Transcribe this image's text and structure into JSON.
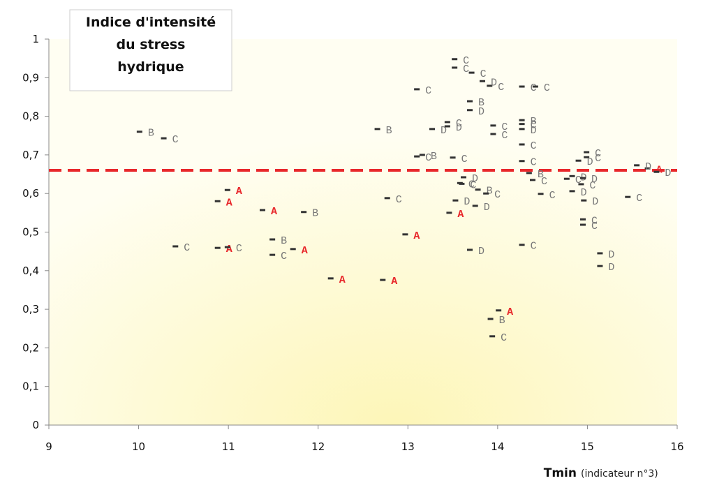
{
  "chart_data": {
    "type": "scatter",
    "title": [
      "Indice d'intensité",
      "du stress",
      "hydrique"
    ],
    "xlabel": "Tmin",
    "xlabel_note": "(indicateur n°3)",
    "xlim": [
      9,
      16
    ],
    "xticks": [
      9,
      10,
      11,
      12,
      13,
      14,
      15,
      16
    ],
    "ylim": [
      0,
      1
    ],
    "yticks": [
      0,
      {
        "value": 0.1,
        "label": "0,1"
      },
      {
        "value": 0.2,
        "label": "0,2"
      },
      {
        "value": 0.3,
        "label": "0,3"
      },
      {
        "value": 0.4,
        "label": "0,4"
      },
      {
        "value": 0.5,
        "label": "0,5"
      },
      {
        "value": 0.6,
        "label": "0,6"
      },
      {
        "value": 0.7,
        "label": "0,7"
      },
      {
        "value": 0.8,
        "label": "0,8"
      },
      {
        "value": 0.9,
        "label": "0,9"
      },
      1
    ],
    "reference_line": {
      "value": 0.66,
      "color": "#e8282b"
    },
    "marker_color": "#333333",
    "series": [
      {
        "name": "A",
        "color": "#e8282b",
        "x": [
          10.99,
          10.88,
          11.38,
          10.88,
          11.72,
          12.14,
          12.72,
          12.97,
          13.46,
          14.01,
          15.67
        ],
        "values": [
          0.609,
          0.58,
          0.557,
          0.459,
          0.456,
          0.38,
          0.376,
          0.494,
          0.55,
          0.297,
          0.665
        ]
      },
      {
        "name": "B",
        "color": "#777777",
        "x": [
          10.01,
          11.84,
          11.49,
          12.66,
          13.16,
          13.69,
          14.27,
          13.92,
          14.35,
          13.78
        ],
        "values": [
          0.76,
          0.552,
          0.481,
          0.767,
          0.7,
          0.839,
          0.79,
          0.275,
          0.653,
          0.61
        ]
      },
      {
        "name": "C",
        "color": "#777777",
        "x": [
          10.28,
          10.41,
          10.99,
          11.49,
          12.77,
          13.1,
          13.1,
          13.5,
          13.44,
          13.52,
          13.52,
          13.71,
          13.91,
          14.27,
          14.42,
          13.95,
          13.95,
          14.27,
          14.27,
          14.27,
          13.58,
          14.27,
          13.94,
          14.39,
          14.48,
          14.99,
          14.99,
          14.77,
          14.93,
          14.95,
          14.95,
          15.45,
          13.6,
          13.87
        ],
        "values": [
          0.743,
          0.463,
          0.461,
          0.441,
          0.588,
          0.87,
          0.696,
          0.693,
          0.785,
          0.948,
          0.926,
          0.913,
          0.879,
          0.877,
          0.877,
          0.776,
          0.754,
          0.78,
          0.727,
          0.684,
          0.627,
          0.467,
          0.23,
          0.635,
          0.599,
          0.707,
          0.694,
          0.638,
          0.624,
          0.533,
          0.519,
          0.591,
          0.625,
          0.6
        ]
      },
      {
        "name": "D",
        "color": "#777777",
        "x": [
          13.27,
          13.44,
          13.83,
          13.69,
          14.27,
          13.62,
          13.53,
          13.75,
          13.69,
          14.83,
          14.96,
          14.83,
          14.95,
          14.9,
          15.14,
          15.14,
          15.55,
          15.77
        ],
        "values": [
          0.767,
          0.774,
          0.891,
          0.816,
          0.767,
          0.642,
          0.582,
          0.568,
          0.454,
          0.606,
          0.582,
          0.645,
          0.64,
          0.685,
          0.445,
          0.412,
          0.673,
          0.656
        ]
      }
    ]
  }
}
